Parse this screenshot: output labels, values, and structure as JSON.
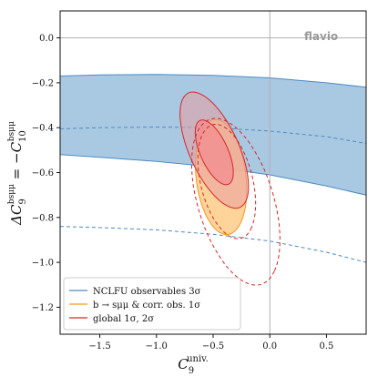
{
  "chart_data": {
    "type": "contour",
    "watermark": "flavio",
    "xlabel": {
      "base": "C",
      "sub": "9",
      "sup": "univ."
    },
    "ylabel": {
      "prefix": "ΔC",
      "sub1": "9",
      "sup1": "bsμμ",
      "mid": " = −C",
      "sub2": "10",
      "sup2": "bsμμ"
    },
    "xlim": [
      -1.85,
      0.85
    ],
    "ylim": [
      -1.32,
      0.12
    ],
    "xticks": [
      -1.5,
      -1.0,
      -0.5,
      0.0,
      0.5
    ],
    "xtick_labels": [
      "−1.5",
      "−1.0",
      "−0.5",
      "0.0",
      "0.5"
    ],
    "yticks": [
      0.0,
      -0.2,
      -0.4,
      -0.6,
      -0.8,
      -1.0,
      -1.2
    ],
    "ytick_labels": [
      "0.0",
      "−0.2",
      "−0.4",
      "−0.6",
      "−0.8",
      "−1.0",
      "−1.2"
    ],
    "reference_lines": {
      "x": 0.0,
      "y": 0.0
    },
    "colors": {
      "blue_fill": "#a9c9e3",
      "blue_line": "#4c8bc2",
      "orange_fill": "#ffcf8f",
      "orange_line": "#f5961e",
      "red_fill": "#e89aa0",
      "red_fill_inner": "#f28a90",
      "red_line": "#d62728",
      "grid": "#b0b0b0"
    },
    "series": [
      {
        "name": "NCLFU observables 3σ",
        "kind": "band",
        "upper": {
          "x": [
            -1.85,
            -1.5,
            -1.0,
            -0.5,
            0.0,
            0.5,
            0.85
          ],
          "y": [
            -0.17,
            -0.165,
            -0.163,
            -0.167,
            -0.178,
            -0.2,
            -0.22
          ]
        },
        "lower": {
          "x": [
            -1.85,
            -1.5,
            -1.0,
            -0.5,
            0.0,
            0.5,
            0.85
          ],
          "y": [
            -0.52,
            -0.532,
            -0.55,
            -0.575,
            -0.61,
            -0.66,
            -0.7
          ]
        },
        "dashed_upper": {
          "x": [
            -1.85,
            -1.5,
            -1.0,
            -0.5,
            0.0,
            0.5,
            0.85
          ],
          "y": [
            -0.405,
            -0.4,
            -0.397,
            -0.4,
            -0.415,
            -0.44,
            -0.47
          ]
        },
        "dashed_lower": {
          "x": [
            -1.85,
            -1.5,
            -1.0,
            -0.5,
            0.0,
            0.5,
            0.85
          ],
          "y": [
            -0.84,
            -0.845,
            -0.855,
            -0.875,
            -0.905,
            -0.955,
            -1.0
          ]
        }
      },
      {
        "name": "b → sμμ & corr. obs. 1σ",
        "kind": "ellipse",
        "center": [
          -0.43,
          -0.62
        ],
        "rx": 0.27,
        "ry": 0.21,
        "angle_deg": -60
      },
      {
        "name": "global 1σ, 2σ",
        "kind": "ellipses",
        "one_sigma": {
          "center": [
            -0.49,
            -0.51
          ],
          "rx": 0.2,
          "ry": 0.095,
          "angle_deg": -38
        },
        "two_sigma": {
          "center": [
            -0.49,
            -0.5
          ],
          "rx": 0.36,
          "ry": 0.17,
          "angle_deg": -38
        },
        "dashed_1": {
          "center": [
            -0.38,
            -0.64
          ],
          "rx": 0.3,
          "ry": 0.2,
          "angle_deg": -45
        },
        "dashed_2": {
          "center": [
            -0.3,
            -0.73
          ],
          "rx": 0.46,
          "ry": 0.28,
          "angle_deg": -42
        }
      }
    ],
    "legend": {
      "position": "bottom-left",
      "entries": [
        {
          "label": "NCLFU observables 3σ",
          "color": "#4c8bc2"
        },
        {
          "label": "b → sμμ & corr. obs. 1σ",
          "color": "#f5961e"
        },
        {
          "label": "global 1σ, 2σ",
          "color": "#d62728"
        }
      ]
    }
  }
}
